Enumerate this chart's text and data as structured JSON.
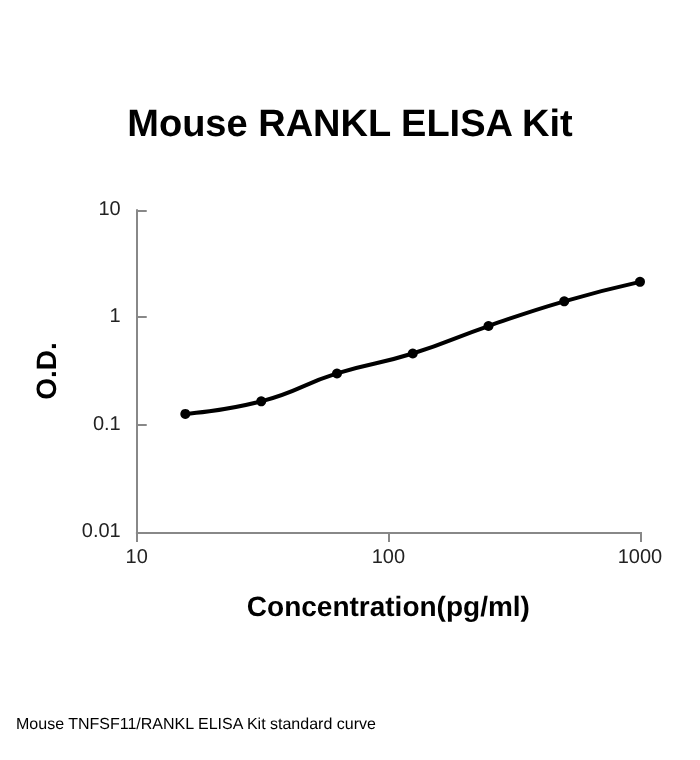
{
  "chart_data": {
    "type": "line",
    "title": "Mouse RANKL ELISA Kit",
    "xlabel": "Concentration(pg/ml)",
    "ylabel": "O.D.",
    "annotations": [
      "Mouse TNFSF11/RANKL ELISA Kit standard curve"
    ],
    "x": [
      15.6,
      31.25,
      62.5,
      125,
      250,
      500,
      1000
    ],
    "series": [
      {
        "color": "#000000",
        "values": [
          0.126,
          0.165,
          0.3,
          0.46,
          0.83,
          1.41,
          2.14
        ]
      }
    ],
    "log": "xy",
    "xlim": [
      10,
      1000
    ],
    "xticks": [
      10,
      100,
      1000
    ],
    "ylim": [
      0.01,
      10
    ],
    "yticks": [
      0.01,
      0.1,
      1,
      10
    ],
    "marker": "circle",
    "line_style": "solid",
    "grid": false
  }
}
